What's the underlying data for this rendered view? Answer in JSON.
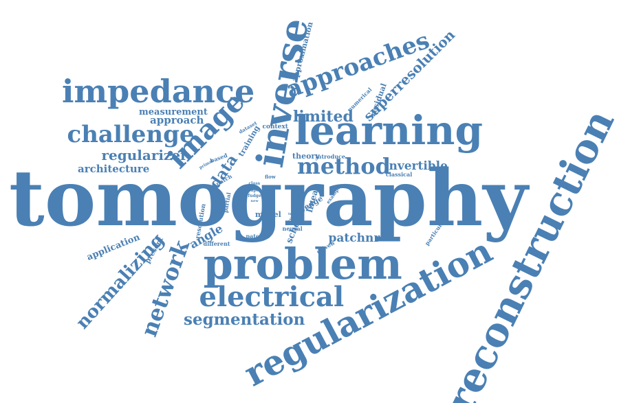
{
  "colors": {
    "word": "#4a80b4",
    "background": "#ffffff"
  },
  "words": [
    {
      "text": "tomography",
      "size": 112,
      "rot": 0
    },
    {
      "text": "reconstruction",
      "size": 58,
      "rot": -64
    },
    {
      "text": "regularization",
      "size": 50,
      "rot": -28
    },
    {
      "text": "problem",
      "size": 62,
      "rot": 0
    },
    {
      "text": "learning",
      "size": 58,
      "rot": 0
    },
    {
      "text": "inverse",
      "size": 54,
      "rot": -80
    },
    {
      "text": "impedance",
      "size": 46,
      "rot": 0
    },
    {
      "text": "image",
      "size": 40,
      "rot": -45
    },
    {
      "text": "approaches",
      "size": 34,
      "rot": -20
    },
    {
      "text": "electrical",
      "size": 40,
      "rot": 0
    },
    {
      "text": "challenge",
      "size": 34,
      "rot": 0
    },
    {
      "text": "method",
      "size": 32,
      "rot": 0
    },
    {
      "text": "network",
      "size": 32,
      "rot": -70
    },
    {
      "text": "normalizing",
      "size": 26,
      "rot": -48
    },
    {
      "text": "segmentation",
      "size": 23,
      "rot": 0
    },
    {
      "text": "superresolution",
      "size": 20,
      "rot": -45
    },
    {
      "text": "data",
      "size": 22,
      "rot": -56
    },
    {
      "text": "limited",
      "size": 22,
      "rot": 0
    },
    {
      "text": "regularizer",
      "size": 20,
      "rot": 0
    },
    {
      "text": "invertible",
      "size": 17,
      "rot": 0
    },
    {
      "text": "patchnr",
      "size": 17,
      "rot": 0
    },
    {
      "text": "angle",
      "size": 17,
      "rot": -30
    },
    {
      "text": "architecture",
      "size": 15,
      "rot": 0
    },
    {
      "text": "approach",
      "size": 15,
      "rot": 0
    },
    {
      "text": "measurement",
      "size": 13,
      "rot": 0
    },
    {
      "text": "application",
      "size": 13,
      "rot": -22
    },
    {
      "text": "scheme",
      "size": 13,
      "rot": -68
    },
    {
      "text": "approximation",
      "size": 11,
      "rot": -75
    },
    {
      "text": "residual",
      "size": 11,
      "rot": -70
    },
    {
      "text": "linear",
      "size": 12,
      "rot": -75
    },
    {
      "text": "training",
      "size": 11,
      "rot": -60
    },
    {
      "text": "theory",
      "size": 11,
      "rot": 0
    },
    {
      "text": "edge",
      "size": 11,
      "rot": -30
    },
    {
      "text": "model",
      "size": 11,
      "rot": 0
    },
    {
      "text": "present",
      "size": 10,
      "rot": -60
    },
    {
      "text": "context",
      "size": 9,
      "rot": 0
    },
    {
      "text": "numerical",
      "size": 8,
      "rot": -45
    },
    {
      "text": "resolution",
      "size": 9,
      "rot": -80
    },
    {
      "text": "particular",
      "size": 8,
      "rot": -55
    },
    {
      "text": "neural",
      "size": 8,
      "rot": 0
    },
    {
      "text": "driven",
      "size": 8,
      "rot": -30
    },
    {
      "text": "patches",
      "size": 8,
      "rot": 0
    },
    {
      "text": "different",
      "size": 8,
      "rot": 0
    },
    {
      "text": "introduce",
      "size": 8,
      "rot": 0
    },
    {
      "text": "classical",
      "size": 8,
      "rot": 0
    },
    {
      "text": "example",
      "size": 7,
      "rot": -55
    },
    {
      "text": "involve",
      "size": 7,
      "rot": -55
    },
    {
      "text": "dataset",
      "size": 7,
      "rot": -30
    },
    {
      "text": "partial",
      "size": 8,
      "rot": -80
    },
    {
      "text": "patch",
      "size": 8,
      "rot": -30
    },
    {
      "text": "based",
      "size": 8,
      "rot": -20
    },
    {
      "text": "flow",
      "size": 7,
      "rot": 0
    },
    {
      "text": "primal",
      "size": 6,
      "rot": -30
    },
    {
      "text": "class",
      "size": 6,
      "rot": 0
    },
    {
      "text": "paper",
      "size": 6,
      "rot": 0
    },
    {
      "text": "fudge",
      "size": 6,
      "rot": 0
    },
    {
      "text": "new",
      "size": 5,
      "rot": 0
    },
    {
      "text": "true",
      "size": 5,
      "rot": 0
    },
    {
      "text": "dual",
      "size": 5,
      "rot": 0
    }
  ]
}
